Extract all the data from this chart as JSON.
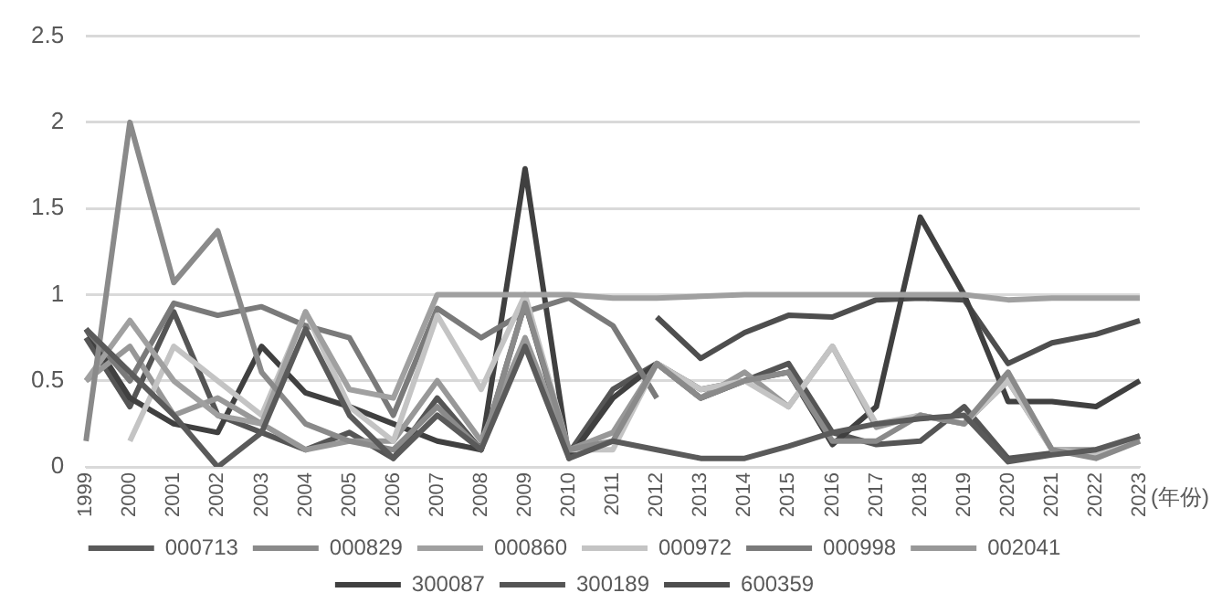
{
  "chart_data": {
    "type": "line",
    "xlabel": "(年份)",
    "categories": [
      "1999",
      "2000",
      "2001",
      "2002",
      "2003",
      "2004",
      "2005",
      "2006",
      "2007",
      "2008",
      "2009",
      "2010",
      "2011",
      "2012",
      "2013",
      "2014",
      "2015",
      "2016",
      "2017",
      "2018",
      "2019",
      "2020",
      "2021",
      "2022",
      "2023"
    ],
    "series": [
      {
        "name": "000713",
        "color": "#5a5a5a",
        "values": [
          0.8,
          0.55,
          0.3,
          0.0,
          0.2,
          0.8,
          0.3,
          0.05,
          0.3,
          0.1,
          0.7,
          0.05,
          0.15,
          0.1,
          0.05,
          0.05,
          0.12,
          0.2,
          0.25,
          0.28,
          0.3,
          0.03,
          0.07,
          0.1,
          0.18
        ]
      },
      {
        "name": "000829",
        "color": "#8a8a8a",
        "values": [
          0.15,
          2.0,
          1.07,
          1.37,
          0.55,
          0.25,
          0.15,
          0.1,
          0.35,
          0.1,
          0.95,
          0.1,
          0.15,
          0.6,
          0.4,
          0.5,
          0.55,
          0.15,
          0.15,
          0.3,
          0.25,
          0.55,
          0.1,
          0.05,
          0.15
        ]
      },
      {
        "name": "000860",
        "color": "#a0a0a0",
        "values": [
          0.5,
          0.85,
          0.5,
          0.3,
          0.25,
          0.9,
          0.45,
          0.4,
          1.0,
          1.0,
          1.0,
          1.0,
          0.98,
          0.98,
          0.99,
          1.0,
          1.0,
          1.0,
          1.0,
          1.0,
          1.0,
          0.97,
          0.98,
          0.98,
          0.98
        ]
      },
      {
        "name": "000972",
        "color": "#c4c4c4",
        "values": [
          null,
          0.15,
          0.7,
          0.5,
          0.3,
          0.9,
          0.35,
          0.15,
          0.88,
          0.45,
          1.0,
          0.1,
          0.1,
          0.6,
          0.45,
          0.5,
          0.35,
          0.7,
          0.25,
          0.3,
          0.25,
          0.5,
          0.1,
          0.08,
          0.15
        ]
      },
      {
        "name": "000998",
        "color": "#7a7a7a",
        "values": [
          0.8,
          0.5,
          0.95,
          0.88,
          0.93,
          0.82,
          0.75,
          0.3,
          0.92,
          0.75,
          0.9,
          0.98,
          0.82,
          0.4,
          null,
          null,
          null,
          null,
          null,
          null,
          null,
          null,
          null,
          null,
          null
        ]
      },
      {
        "name": "002041",
        "color": "#989898",
        "values": [
          0.5,
          0.7,
          0.3,
          0.4,
          0.25,
          0.1,
          0.15,
          0.15,
          0.5,
          0.15,
          0.75,
          0.1,
          0.2,
          0.6,
          0.4,
          0.55,
          0.35,
          0.7,
          0.23,
          0.3,
          0.25,
          0.5,
          0.1,
          0.1,
          0.15
        ]
      },
      {
        "name": "300087",
        "color": "#404040",
        "values": [
          0.8,
          0.4,
          0.25,
          0.2,
          0.7,
          0.43,
          0.35,
          0.25,
          0.15,
          0.1,
          1.73,
          0.05,
          0.4,
          0.6,
          0.4,
          0.5,
          0.55,
          0.13,
          0.35,
          1.45,
          1.0,
          0.38,
          0.38,
          0.35,
          0.5
        ]
      },
      {
        "name": "300189",
        "color": "#555555",
        "values": [
          0.75,
          0.35,
          0.9,
          0.3,
          0.2,
          0.1,
          0.2,
          0.05,
          0.4,
          0.1,
          0.95,
          0.08,
          0.45,
          0.6,
          0.45,
          0.5,
          0.6,
          0.2,
          0.13,
          0.15,
          0.35,
          0.05,
          0.08,
          0.08,
          0.18
        ]
      },
      {
        "name": "600359",
        "color": "#4e4e4e",
        "values": [
          null,
          null,
          null,
          null,
          null,
          null,
          null,
          null,
          null,
          null,
          null,
          null,
          null,
          0.87,
          0.63,
          0.78,
          0.88,
          0.87,
          0.97,
          0.98,
          0.97,
          0.6,
          0.72,
          0.77,
          0.85
        ]
      }
    ],
    "ylim": [
      0,
      2.5
    ],
    "yticks": [
      0,
      0.5,
      1,
      1.5,
      2,
      2.5
    ],
    "grid": "y",
    "legend": "bottom",
    "marker": "none",
    "line_style": "solid"
  }
}
